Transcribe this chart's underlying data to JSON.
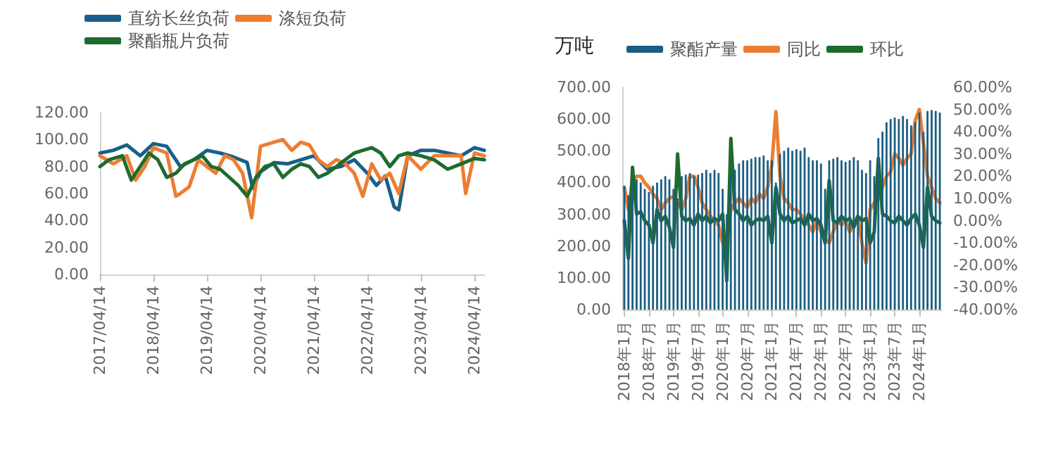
{
  "chart_data": [
    {
      "type": "line",
      "legend": "top",
      "grid": false,
      "marker": "none",
      "line_style": "solid",
      "xlim": [
        "2017-04-14",
        "2024-06-20"
      ],
      "xticks": [
        {
          "value": "2017-04-14",
          "label": "2017/04/14"
        },
        {
          "value": "2018-04-14",
          "label": "2018/04/14"
        },
        {
          "value": "2019-04-14",
          "label": "2019/04/14"
        },
        {
          "value": "2020-04-14",
          "label": "2020/04/14"
        },
        {
          "value": "2021-04-14",
          "label": "2021/04/14"
        },
        {
          "value": "2022-04-14",
          "label": "2022/04/14"
        },
        {
          "value": "2023-04-14",
          "label": "2023/04/14"
        },
        {
          "value": "2024-04-14",
          "label": "2024/04/14"
        }
      ],
      "ylim": [
        0,
        120
      ],
      "yticks": [
        {
          "value": 0,
          "label": "0.00"
        },
        {
          "value": 20,
          "label": "20.00"
        },
        {
          "value": 40,
          "label": "40.00"
        },
        {
          "value": 60,
          "label": "60.00"
        },
        {
          "value": 80,
          "label": "80.00"
        },
        {
          "value": 100,
          "label": "100.00"
        },
        {
          "value": 120,
          "label": "120.00"
        }
      ],
      "series": [
        {
          "name": "直纺长丝负荷",
          "color": "#1a5f8a",
          "x": [
            "2017-04-14",
            "2017-07-14",
            "2017-10-14",
            "2018-01-14",
            "2018-04-14",
            "2018-07-14",
            "2018-10-14",
            "2019-01-14",
            "2019-04-14",
            "2019-07-14",
            "2019-10-14",
            "2020-01-14",
            "2020-02-20",
            "2020-04-14",
            "2020-07-14",
            "2020-10-14",
            "2021-01-14",
            "2021-04-14",
            "2021-07-14",
            "2021-10-14",
            "2022-01-14",
            "2022-04-14",
            "2022-06-14",
            "2022-08-14",
            "2022-10-14",
            "2022-11-14",
            "2023-01-14",
            "2023-04-14",
            "2023-07-14",
            "2023-10-14",
            "2024-01-14",
            "2024-04-14",
            "2024-06-20"
          ],
          "values": [
            90,
            92,
            96,
            88,
            97,
            95,
            80,
            85,
            92,
            90,
            87,
            83,
            64,
            76,
            83,
            82,
            85,
            88,
            78,
            80,
            85,
            75,
            66,
            73,
            50,
            48,
            88,
            92,
            92,
            90,
            88,
            94,
            92
          ]
        },
        {
          "name": "涤短负荷",
          "color": "#ed7d31",
          "x": [
            "2017-04-14",
            "2017-07-14",
            "2017-10-14",
            "2017-12-14",
            "2018-02-14",
            "2018-04-14",
            "2018-07-14",
            "2018-09-14",
            "2018-10-14",
            "2018-12-14",
            "2019-02-14",
            "2019-04-14",
            "2019-06-14",
            "2019-08-14",
            "2019-10-14",
            "2019-12-14",
            "2020-02-14",
            "2020-04-14",
            "2020-07-14",
            "2020-09-14",
            "2020-11-14",
            "2021-01-14",
            "2021-03-14",
            "2021-05-14",
            "2021-07-14",
            "2021-09-14",
            "2021-11-14",
            "2022-01-14",
            "2022-03-14",
            "2022-05-14",
            "2022-07-14",
            "2022-09-14",
            "2022-11-14",
            "2023-01-14",
            "2023-04-14",
            "2023-07-14",
            "2023-10-14",
            "2024-01-14",
            "2024-02-14",
            "2024-04-14",
            "2024-06-20"
          ],
          "values": [
            88,
            82,
            88,
            70,
            80,
            94,
            90,
            58,
            60,
            65,
            85,
            80,
            75,
            88,
            85,
            75,
            42,
            95,
            98,
            100,
            92,
            98,
            96,
            85,
            80,
            85,
            82,
            75,
            58,
            82,
            70,
            75,
            60,
            88,
            78,
            88,
            88,
            88,
            60,
            90,
            88
          ]
        },
        {
          "name": "聚酯瓶片负荷",
          "color": "#1e6b2e",
          "x": [
            "2017-04-14",
            "2017-06-14",
            "2017-09-14",
            "2017-11-14",
            "2018-01-14",
            "2018-03-14",
            "2018-05-14",
            "2018-07-14",
            "2018-09-14",
            "2018-11-14",
            "2019-01-14",
            "2019-03-14",
            "2019-05-14",
            "2019-07-14",
            "2019-09-14",
            "2019-11-14",
            "2020-01-14",
            "2020-03-14",
            "2020-05-14",
            "2020-07-14",
            "2020-09-14",
            "2020-11-14",
            "2021-01-14",
            "2021-03-14",
            "2021-05-14",
            "2021-07-14",
            "2021-09-14",
            "2021-11-14",
            "2022-01-14",
            "2022-03-14",
            "2022-05-14",
            "2022-07-14",
            "2022-09-14",
            "2022-11-14",
            "2023-01-14",
            "2023-04-14",
            "2023-07-14",
            "2023-10-14",
            "2024-01-14",
            "2024-04-14",
            "2024-06-20"
          ],
          "values": [
            80,
            85,
            88,
            70,
            80,
            90,
            85,
            72,
            75,
            82,
            85,
            88,
            80,
            78,
            72,
            66,
            58,
            72,
            80,
            82,
            72,
            78,
            82,
            80,
            72,
            75,
            80,
            85,
            90,
            92,
            94,
            90,
            80,
            88,
            90,
            88,
            85,
            78,
            82,
            86,
            85
          ]
        }
      ]
    },
    {
      "type": "bar",
      "ylabel": "万吨",
      "legend": "top",
      "grid": false,
      "marker": "none",
      "categories": [
        "2018年1月",
        null,
        null,
        null,
        null,
        null,
        "2018年7月",
        null,
        null,
        null,
        null,
        null,
        "2019年1月",
        null,
        null,
        null,
        null,
        null,
        "2019年7月",
        null,
        null,
        null,
        null,
        null,
        "2020年1月",
        null,
        null,
        null,
        null,
        null,
        "2020年7月",
        null,
        null,
        null,
        null,
        null,
        "2021年1月",
        null,
        null,
        null,
        null,
        null,
        "2021年7月",
        null,
        null,
        null,
        null,
        null,
        "2022年1月",
        null,
        null,
        null,
        null,
        null,
        "2022年7月",
        null,
        null,
        null,
        null,
        null,
        "2023年1月",
        null,
        null,
        null,
        null,
        null,
        "2023年7月",
        null,
        null,
        null,
        null,
        null,
        "2024年1月",
        null,
        null,
        null,
        null,
        null
      ],
      "ylim": [
        0,
        700
      ],
      "yticks": [
        {
          "value": 0,
          "label": "0.00"
        },
        {
          "value": 100,
          "label": "100.00"
        },
        {
          "value": 200,
          "label": "200.00"
        },
        {
          "value": 300,
          "label": "300.00"
        },
        {
          "value": 400,
          "label": "400.00"
        },
        {
          "value": 500,
          "label": "500.00"
        },
        {
          "value": 600,
          "label": "600.00"
        },
        {
          "value": 700,
          "label": "700.00"
        }
      ],
      "y2lim": [
        -40,
        60
      ],
      "y2ticks": [
        {
          "value": -40,
          "label": "-40.00%"
        },
        {
          "value": -30,
          "label": "-30.00%"
        },
        {
          "value": -20,
          "label": "-20.00%"
        },
        {
          "value": -10,
          "label": "-10.00%"
        },
        {
          "value": 0,
          "label": "0.00%"
        },
        {
          "value": 10,
          "label": "10.00%"
        },
        {
          "value": 20,
          "label": "20.00%"
        },
        {
          "value": 30,
          "label": "30.00%"
        },
        {
          "value": 40,
          "label": "40.00%"
        },
        {
          "value": 50,
          "label": "50.00%"
        },
        {
          "value": 60,
          "label": "60.00%"
        }
      ],
      "series": [
        {
          "name": "聚酯产量",
          "color": "#1b5e82",
          "values": [
            390,
            360,
            400,
            410,
            400,
            380,
            370,
            390,
            400,
            410,
            420,
            410,
            380,
            350,
            420,
            425,
            430,
            420,
            425,
            430,
            440,
            430,
            440,
            430,
            380,
            300,
            420,
            440,
            460,
            470,
            470,
            475,
            480,
            480,
            485,
            470,
            470,
            400,
            490,
            500,
            510,
            500,
            505,
            500,
            510,
            480,
            470,
            470,
            460,
            380,
            470,
            475,
            480,
            470,
            465,
            470,
            480,
            470,
            440,
            430,
            470,
            420,
            540,
            560,
            590,
            600,
            605,
            600,
            610,
            600,
            580,
            590,
            620,
            560,
            625,
            628,
            625,
            620
          ]
        },
        {
          "name": "同比",
          "type": "line",
          "axis": "y2",
          "color": "#ed7d31",
          "values": [
            15,
            5,
            18,
            20,
            20,
            17,
            15,
            12,
            10,
            5,
            8,
            10,
            11,
            8,
            5,
            10,
            20,
            20,
            15,
            8,
            5,
            2,
            0,
            -2,
            -10,
            -8,
            5,
            8,
            10,
            8,
            6,
            10,
            8,
            12,
            10,
            15,
            25,
            49,
            20,
            10,
            8,
            5,
            5,
            3,
            0,
            -2,
            -5,
            0,
            -5,
            -8,
            -10,
            -5,
            0,
            -2,
            0,
            -5,
            -2,
            2,
            -10,
            -19,
            5,
            8,
            10,
            15,
            20,
            22,
            30,
            28,
            25,
            28,
            30,
            45,
            50,
            35,
            20,
            15,
            10,
            8
          ]
        },
        {
          "name": "环比",
          "type": "line",
          "axis": "y2",
          "color": "#1e6b2e",
          "values": [
            0,
            -17,
            24,
            3,
            4,
            0,
            -2,
            -10,
            5,
            0,
            2,
            -3,
            -12,
            30,
            2,
            0,
            1,
            -2,
            3,
            0,
            2,
            -1,
            1,
            0,
            3,
            -27,
            37,
            5,
            3,
            0,
            2,
            -2,
            0,
            1,
            0,
            2,
            -10,
            15,
            3,
            0,
            2,
            -1,
            0,
            1,
            -2,
            3,
            0,
            1,
            -2,
            -10,
            18,
            0,
            -1,
            2,
            0,
            1,
            -3,
            2,
            0,
            1,
            -10,
            -5,
            28,
            3,
            2,
            0,
            -1,
            2,
            0,
            -2,
            1,
            3,
            -2,
            -12,
            15,
            2,
            0,
            -1
          ]
        }
      ]
    }
  ]
}
